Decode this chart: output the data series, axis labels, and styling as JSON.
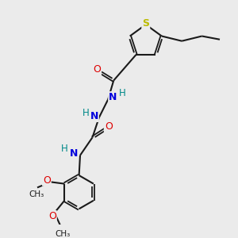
{
  "bg_color": "#ebebeb",
  "bond_color": "#1a1a1a",
  "S_color": "#bbbb00",
  "N_color": "#0000dd",
  "O_color": "#dd0000",
  "H_color": "#008888",
  "C_color": "#1a1a1a",
  "figsize": [
    3.0,
    3.0
  ],
  "dpi": 100,
  "xlim": [
    0,
    10
  ],
  "ylim": [
    0,
    10
  ]
}
